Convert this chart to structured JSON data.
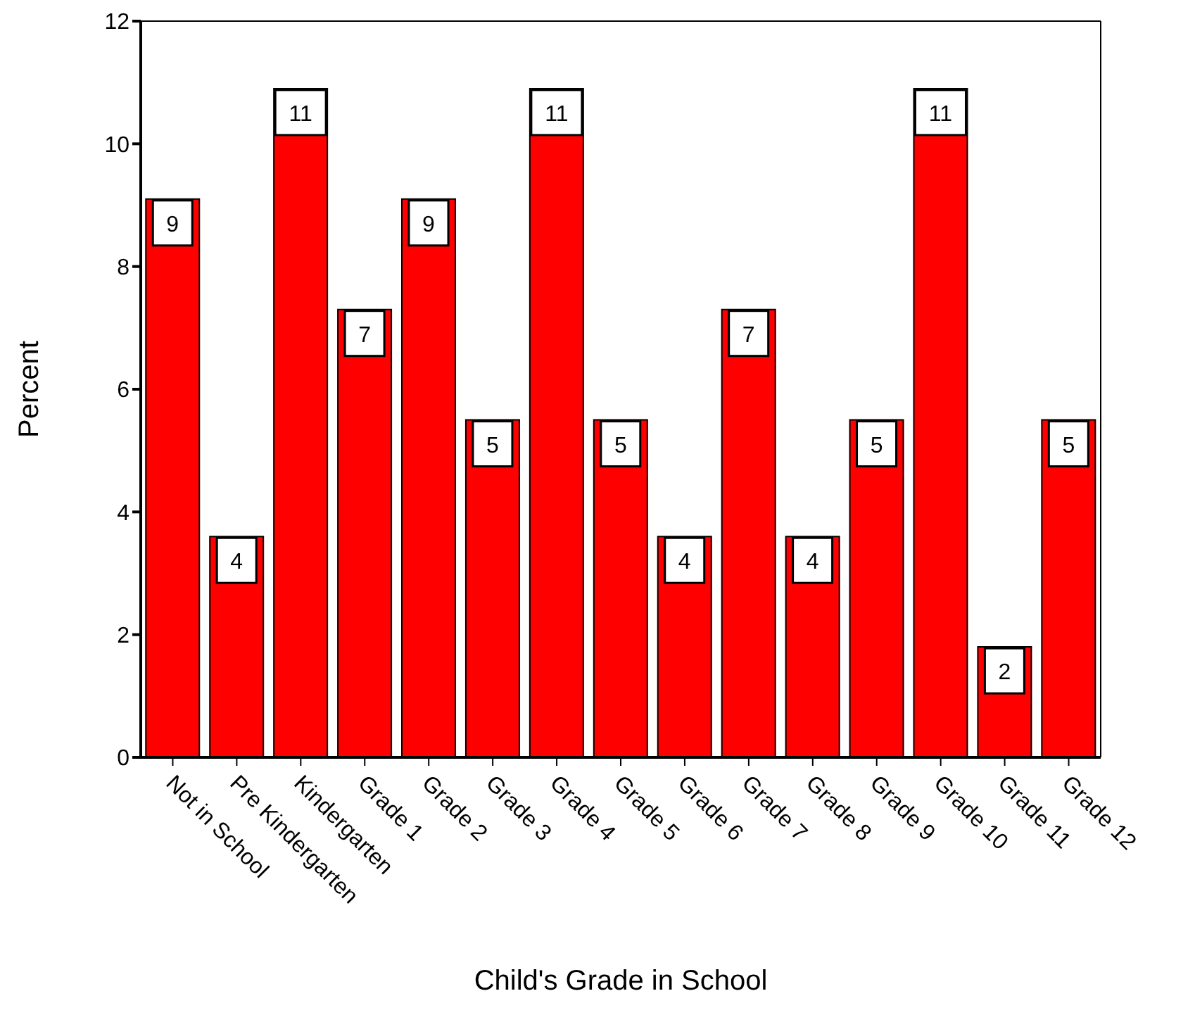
{
  "chart_data": {
    "type": "bar",
    "xlabel": "Child's Grade in School",
    "ylabel": "Percent",
    "categories": [
      "Not in School",
      "Pre Kindergarten",
      "Kindergarten",
      "Grade 1",
      "Grade 2",
      "Grade 3",
      "Grade 4",
      "Grade 5",
      "Grade 6",
      "Grade 7",
      "Grade 8",
      "Grade 9",
      "Grade 10",
      "Grade 11",
      "Grade 12"
    ],
    "values": [
      9.1,
      3.6,
      10.9,
      7.3,
      9.1,
      5.5,
      10.9,
      5.5,
      3.6,
      7.3,
      3.6,
      5.5,
      10.9,
      1.8,
      5.5
    ],
    "value_labels": [
      "9",
      "4",
      "11",
      "7",
      "9",
      "5",
      "11",
      "5",
      "4",
      "7",
      "4",
      "5",
      "11",
      "2",
      "5"
    ],
    "color": "#ff0000",
    "ylim": [
      0,
      12
    ],
    "yticks": [
      0,
      2,
      4,
      6,
      8,
      10,
      12
    ],
    "grid": false,
    "legend": false
  }
}
